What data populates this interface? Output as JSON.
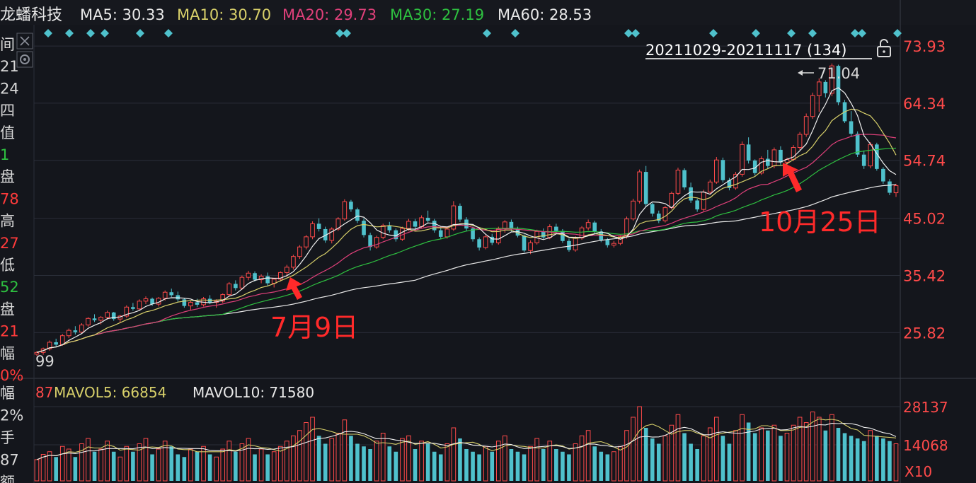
{
  "header": {
    "stock_name": "龙蟠科技",
    "ma_items": [
      {
        "label": "MA5: 30.33",
        "color": "#e8e8e8"
      },
      {
        "label": "MA10: 30.70",
        "color": "#d8d06a"
      },
      {
        "label": "MA20: 29.73",
        "color": "#e0407a"
      },
      {
        "label": "MA30: 27.19",
        "color": "#2ec040"
      },
      {
        "label": "MA60: 28.53",
        "color": "#e8e8e8"
      }
    ]
  },
  "range_label": "20211029-20211117 (134)",
  "left_panel": {
    "items": [
      {
        "text": "间",
        "color": "#d8d8d8"
      },
      {
        "text": "21",
        "color": "#d8d8d8"
      },
      {
        "text": "24",
        "color": "#d8d8d8"
      },
      {
        "text": "四",
        "color": "#d8d8d8"
      },
      {
        "text": "值",
        "color": "#d8d8d8"
      },
      {
        "text": "1",
        "color": "#2ec040"
      },
      {
        "text": "盘",
        "color": "#d8d8d8"
      },
      {
        "text": "78",
        "color": "#ff3b3b"
      },
      {
        "text": "高",
        "color": "#d8d8d8"
      },
      {
        "text": "27",
        "color": "#ff3b3b"
      },
      {
        "text": "低",
        "color": "#d8d8d8"
      },
      {
        "text": "52",
        "color": "#2ec040"
      },
      {
        "text": "盘",
        "color": "#d8d8d8"
      },
      {
        "text": "21",
        "color": "#ff3b3b"
      },
      {
        "text": "幅",
        "color": "#d8d8d8"
      },
      {
        "text": "0%",
        "color": "#ff3b3b"
      }
    ],
    "lower_items": [
      {
        "text": "幅",
        "color": "#d8d8d8"
      },
      {
        "text": "2%",
        "color": "#d8d8d8"
      },
      {
        "text": "手",
        "color": "#d8d8d8"
      },
      {
        "text": "87",
        "color": "#d8d8d8"
      },
      {
        "text": "额",
        "color": "#d8d8d8"
      }
    ]
  },
  "annotations": {
    "high_label": "71.04",
    "low_label": "99",
    "arrow1_label": "7月9日",
    "arrow2_label": "10月25日"
  },
  "volume_header": {
    "vol_prefix": "87",
    "mavol5": "MAVOL5: 66854",
    "mavol10": "MAVOL10: 71580"
  },
  "volume_axis": {
    "ticks": [
      "28137",
      "14068",
      "X10"
    ]
  },
  "colors": {
    "up": "#ff4a4a",
    "down": "#4fc1cc",
    "ma5": "#f0f0f0",
    "ma10": "#d8d06a",
    "ma20": "#e0407a",
    "ma30": "#2ec040",
    "ma60": "#e8e8e8",
    "axis_price": "#ff4a4a",
    "grid": "#2a2e38"
  },
  "chart_data": {
    "type": "candlestick",
    "price_axis": {
      "ticks": [
        73.93,
        64.34,
        54.74,
        45.02,
        35.42,
        25.82
      ],
      "range": [
        18.5,
        77.5
      ]
    },
    "candles": [
      [
        22.2,
        22.7,
        21.9,
        22.5
      ],
      [
        22.5,
        23.3,
        22.1,
        23.1
      ],
      [
        23.1,
        24.5,
        22.8,
        24.2
      ],
      [
        24.2,
        24.8,
        23.5,
        23.8
      ],
      [
        23.8,
        25.6,
        23.6,
        25.3
      ],
      [
        25.3,
        26.5,
        24.9,
        26.2
      ],
      [
        26.2,
        26.9,
        25.5,
        25.9
      ],
      [
        25.9,
        27.4,
        25.7,
        27.1
      ],
      [
        27.1,
        28.4,
        26.8,
        28.2
      ],
      [
        28.2,
        28.9,
        27.6,
        27.9
      ],
      [
        27.9,
        28.6,
        27.2,
        28.4
      ],
      [
        28.4,
        29.5,
        28.0,
        29.2
      ],
      [
        29.2,
        29.3,
        27.8,
        28.1
      ],
      [
        28.1,
        28.8,
        27.5,
        28.6
      ],
      [
        28.6,
        30.4,
        28.3,
        30.1
      ],
      [
        30.1,
        30.8,
        29.5,
        29.8
      ],
      [
        29.8,
        31.4,
        29.5,
        31.1
      ],
      [
        31.1,
        31.9,
        30.6,
        31.5
      ],
      [
        31.5,
        31.7,
        30.3,
        30.6
      ],
      [
        30.6,
        31.8,
        30.2,
        31.6
      ],
      [
        31.6,
        32.9,
        31.2,
        32.6
      ],
      [
        32.6,
        33.2,
        31.8,
        32.1
      ],
      [
        32.1,
        32.7,
        31.0,
        31.4
      ],
      [
        31.4,
        31.6,
        30.0,
        30.3
      ],
      [
        30.3,
        31.2,
        29.6,
        30.9
      ],
      [
        30.9,
        31.5,
        30.1,
        30.5
      ],
      [
        30.5,
        31.8,
        30.2,
        31.5
      ],
      [
        31.5,
        32.1,
        30.6,
        30.9
      ],
      [
        30.9,
        31.4,
        30.0,
        31.1
      ],
      [
        31.1,
        32.4,
        30.8,
        32.2
      ],
      [
        32.2,
        34.3,
        31.9,
        34.0
      ],
      [
        34.0,
        34.6,
        32.9,
        33.3
      ],
      [
        33.3,
        35.4,
        33.0,
        35.1
      ],
      [
        35.1,
        36.2,
        34.6,
        35.8
      ],
      [
        35.8,
        36.1,
        34.4,
        34.7
      ],
      [
        34.7,
        35.6,
        34.1,
        35.3
      ],
      [
        35.3,
        35.9,
        33.7,
        34.1
      ],
      [
        34.1,
        35.0,
        33.4,
        34.8
      ],
      [
        34.8,
        36.1,
        34.4,
        35.9
      ],
      [
        35.9,
        37.2,
        35.2,
        36.8
      ],
      [
        36.8,
        38.9,
        36.4,
        38.6
      ],
      [
        38.6,
        40.5,
        38.2,
        40.2
      ],
      [
        40.2,
        42.2,
        39.8,
        41.9
      ],
      [
        41.9,
        44.5,
        41.5,
        44.1
      ],
      [
        44.1,
        45.0,
        42.8,
        43.2
      ],
      [
        43.2,
        43.6,
        40.9,
        41.3
      ],
      [
        41.3,
        43.5,
        40.8,
        43.2
      ],
      [
        43.2,
        45.2,
        42.9,
        44.9
      ],
      [
        44.9,
        48.2,
        44.6,
        47.8
      ],
      [
        47.8,
        48.1,
        46.1,
        46.5
      ],
      [
        46.5,
        46.8,
        44.2,
        44.6
      ],
      [
        44.6,
        45.0,
        41.8,
        42.2
      ],
      [
        42.2,
        42.6,
        39.6,
        40.2
      ],
      [
        40.2,
        42.1,
        39.9,
        41.8
      ],
      [
        41.8,
        44.1,
        41.5,
        43.8
      ],
      [
        43.8,
        44.4,
        42.6,
        43.0
      ],
      [
        43.0,
        43.3,
        41.1,
        41.5
      ],
      [
        41.5,
        43.6,
        41.2,
        43.3
      ],
      [
        43.3,
        44.9,
        42.9,
        44.5
      ],
      [
        44.5,
        44.9,
        43.2,
        43.6
      ],
      [
        43.6,
        45.5,
        43.3,
        45.1
      ],
      [
        45.1,
        46.3,
        44.3,
        44.6
      ],
      [
        44.6,
        44.9,
        42.6,
        43.0
      ],
      [
        43.0,
        43.5,
        41.5,
        41.9
      ],
      [
        41.9,
        43.6,
        41.6,
        43.2
      ],
      [
        43.2,
        47.9,
        42.9,
        47.1
      ],
      [
        47.1,
        47.5,
        44.4,
        44.8
      ],
      [
        44.8,
        45.2,
        42.9,
        43.3
      ],
      [
        43.3,
        43.6,
        41.1,
        41.5
      ],
      [
        41.5,
        41.8,
        39.6,
        40.1
      ],
      [
        40.1,
        42.2,
        39.8,
        41.9
      ],
      [
        41.9,
        42.4,
        40.5,
        40.9
      ],
      [
        40.9,
        43.6,
        40.6,
        43.2
      ],
      [
        43.2,
        44.7,
        42.6,
        44.4
      ],
      [
        44.4,
        44.8,
        42.8,
        43.2
      ],
      [
        43.2,
        43.6,
        41.8,
        42.1
      ],
      [
        42.1,
        42.3,
        39.3,
        39.6
      ],
      [
        39.6,
        41.3,
        39.0,
        40.9
      ],
      [
        40.9,
        43.1,
        40.6,
        42.8
      ],
      [
        42.8,
        43.3,
        41.5,
        41.8
      ],
      [
        41.8,
        44.0,
        41.5,
        43.6
      ],
      [
        43.6,
        44.1,
        42.5,
        42.9
      ],
      [
        42.9,
        43.2,
        40.9,
        41.2
      ],
      [
        41.2,
        41.6,
        39.4,
        39.7
      ],
      [
        39.7,
        42.0,
        39.4,
        41.7
      ],
      [
        41.7,
        43.7,
        41.4,
        43.4
      ],
      [
        43.4,
        44.8,
        43.0,
        44.3
      ],
      [
        44.3,
        44.6,
        42.4,
        42.8
      ],
      [
        42.8,
        43.2,
        41.0,
        41.4
      ],
      [
        41.4,
        41.7,
        40.1,
        40.5
      ],
      [
        40.5,
        41.2,
        40.1,
        40.8
      ],
      [
        40.8,
        42.2,
        40.5,
        41.9
      ],
      [
        41.9,
        45.3,
        41.6,
        44.9
      ],
      [
        44.9,
        48.3,
        44.6,
        47.9
      ],
      [
        47.9,
        53.2,
        47.5,
        52.8
      ],
      [
        52.8,
        53.8,
        47.0,
        47.4
      ],
      [
        47.4,
        47.6,
        45.3,
        45.8
      ],
      [
        45.8,
        46.3,
        44.2,
        44.6
      ],
      [
        44.6,
        47.1,
        44.3,
        46.8
      ],
      [
        46.8,
        49.5,
        46.5,
        49.2
      ],
      [
        49.2,
        53.5,
        48.9,
        53.1
      ],
      [
        53.1,
        53.4,
        49.8,
        50.2
      ],
      [
        50.2,
        51.0,
        47.6,
        48.0
      ],
      [
        48.0,
        48.3,
        46.1,
        46.5
      ],
      [
        46.5,
        49.8,
        46.2,
        49.4
      ],
      [
        49.4,
        51.5,
        49.0,
        51.1
      ],
      [
        51.1,
        55.3,
        50.8,
        54.8
      ],
      [
        54.8,
        55.2,
        51.0,
        51.4
      ],
      [
        51.4,
        51.8,
        49.7,
        50.1
      ],
      [
        50.1,
        52.8,
        49.8,
        52.4
      ],
      [
        52.4,
        57.9,
        52.0,
        57.4
      ],
      [
        57.4,
        58.6,
        54.2,
        54.7
      ],
      [
        54.7,
        54.9,
        52.2,
        52.6
      ],
      [
        52.6,
        55.4,
        52.3,
        55.0
      ],
      [
        55.0,
        56.5,
        53.3,
        53.8
      ],
      [
        53.8,
        56.9,
        53.4,
        56.5
      ],
      [
        56.5,
        57.1,
        54.0,
        54.4
      ],
      [
        54.4,
        55.2,
        53.2,
        54.9
      ],
      [
        54.9,
        57.3,
        54.6,
        56.9
      ],
      [
        56.9,
        59.5,
        56.5,
        59.1
      ],
      [
        59.1,
        62.6,
        58.7,
        62.1
      ],
      [
        62.1,
        66.1,
        61.7,
        65.6
      ],
      [
        65.6,
        68.5,
        62.9,
        67.9
      ],
      [
        67.9,
        68.2,
        65.3,
        66.0
      ],
      [
        66.0,
        71.0,
        65.5,
        70.6
      ],
      [
        70.6,
        70.8,
        64.0,
        64.5
      ],
      [
        64.5,
        64.9,
        61.0,
        61.3
      ],
      [
        61.3,
        63.0,
        58.8,
        59.2
      ],
      [
        59.2,
        59.6,
        55.3,
        55.7
      ],
      [
        55.7,
        56.4,
        53.3,
        53.8
      ],
      [
        53.8,
        57.8,
        53.4,
        57.4
      ],
      [
        57.4,
        57.7,
        53.0,
        53.3
      ],
      [
        53.3,
        53.6,
        50.8,
        51.2
      ],
      [
        51.2,
        51.6,
        48.9,
        49.3
      ],
      [
        49.3,
        50.8,
        48.6,
        50.5
      ]
    ],
    "volumes": [
      8,
      10,
      11,
      9,
      13,
      12,
      9,
      14,
      16,
      11,
      12,
      15,
      11,
      9,
      13,
      11,
      14,
      16,
      10,
      12,
      15,
      13,
      10,
      9,
      12,
      11,
      13,
      10,
      9,
      12,
      15,
      11,
      14,
      16,
      10,
      12,
      10,
      11,
      13,
      15,
      17,
      19,
      22,
      24,
      17,
      14,
      16,
      18,
      23,
      17,
      14,
      13,
      12,
      15,
      18,
      13,
      11,
      16,
      17,
      12,
      15,
      14,
      11,
      10,
      14,
      20,
      16,
      12,
      11,
      10,
      13,
      11,
      15,
      17,
      12,
      11,
      10,
      13,
      16,
      12,
      15,
      12,
      11,
      10,
      14,
      17,
      19,
      13,
      11,
      10,
      11,
      13,
      19,
      24,
      28,
      20,
      16,
      14,
      17,
      21,
      25,
      18,
      14,
      12,
      17,
      20,
      24,
      17,
      14,
      19,
      25,
      22,
      18,
      20,
      19,
      21,
      17,
      18,
      21,
      24,
      22,
      26,
      24,
      19,
      25,
      20,
      18,
      17,
      16,
      15,
      19,
      17,
      16,
      15,
      14
    ],
    "ma_lines": [
      "MA5",
      "MA10",
      "MA20",
      "MA30",
      "MA60"
    ],
    "volume_axis": {
      "max": 28137,
      "mid": 14068,
      "scale": "X10"
    }
  }
}
